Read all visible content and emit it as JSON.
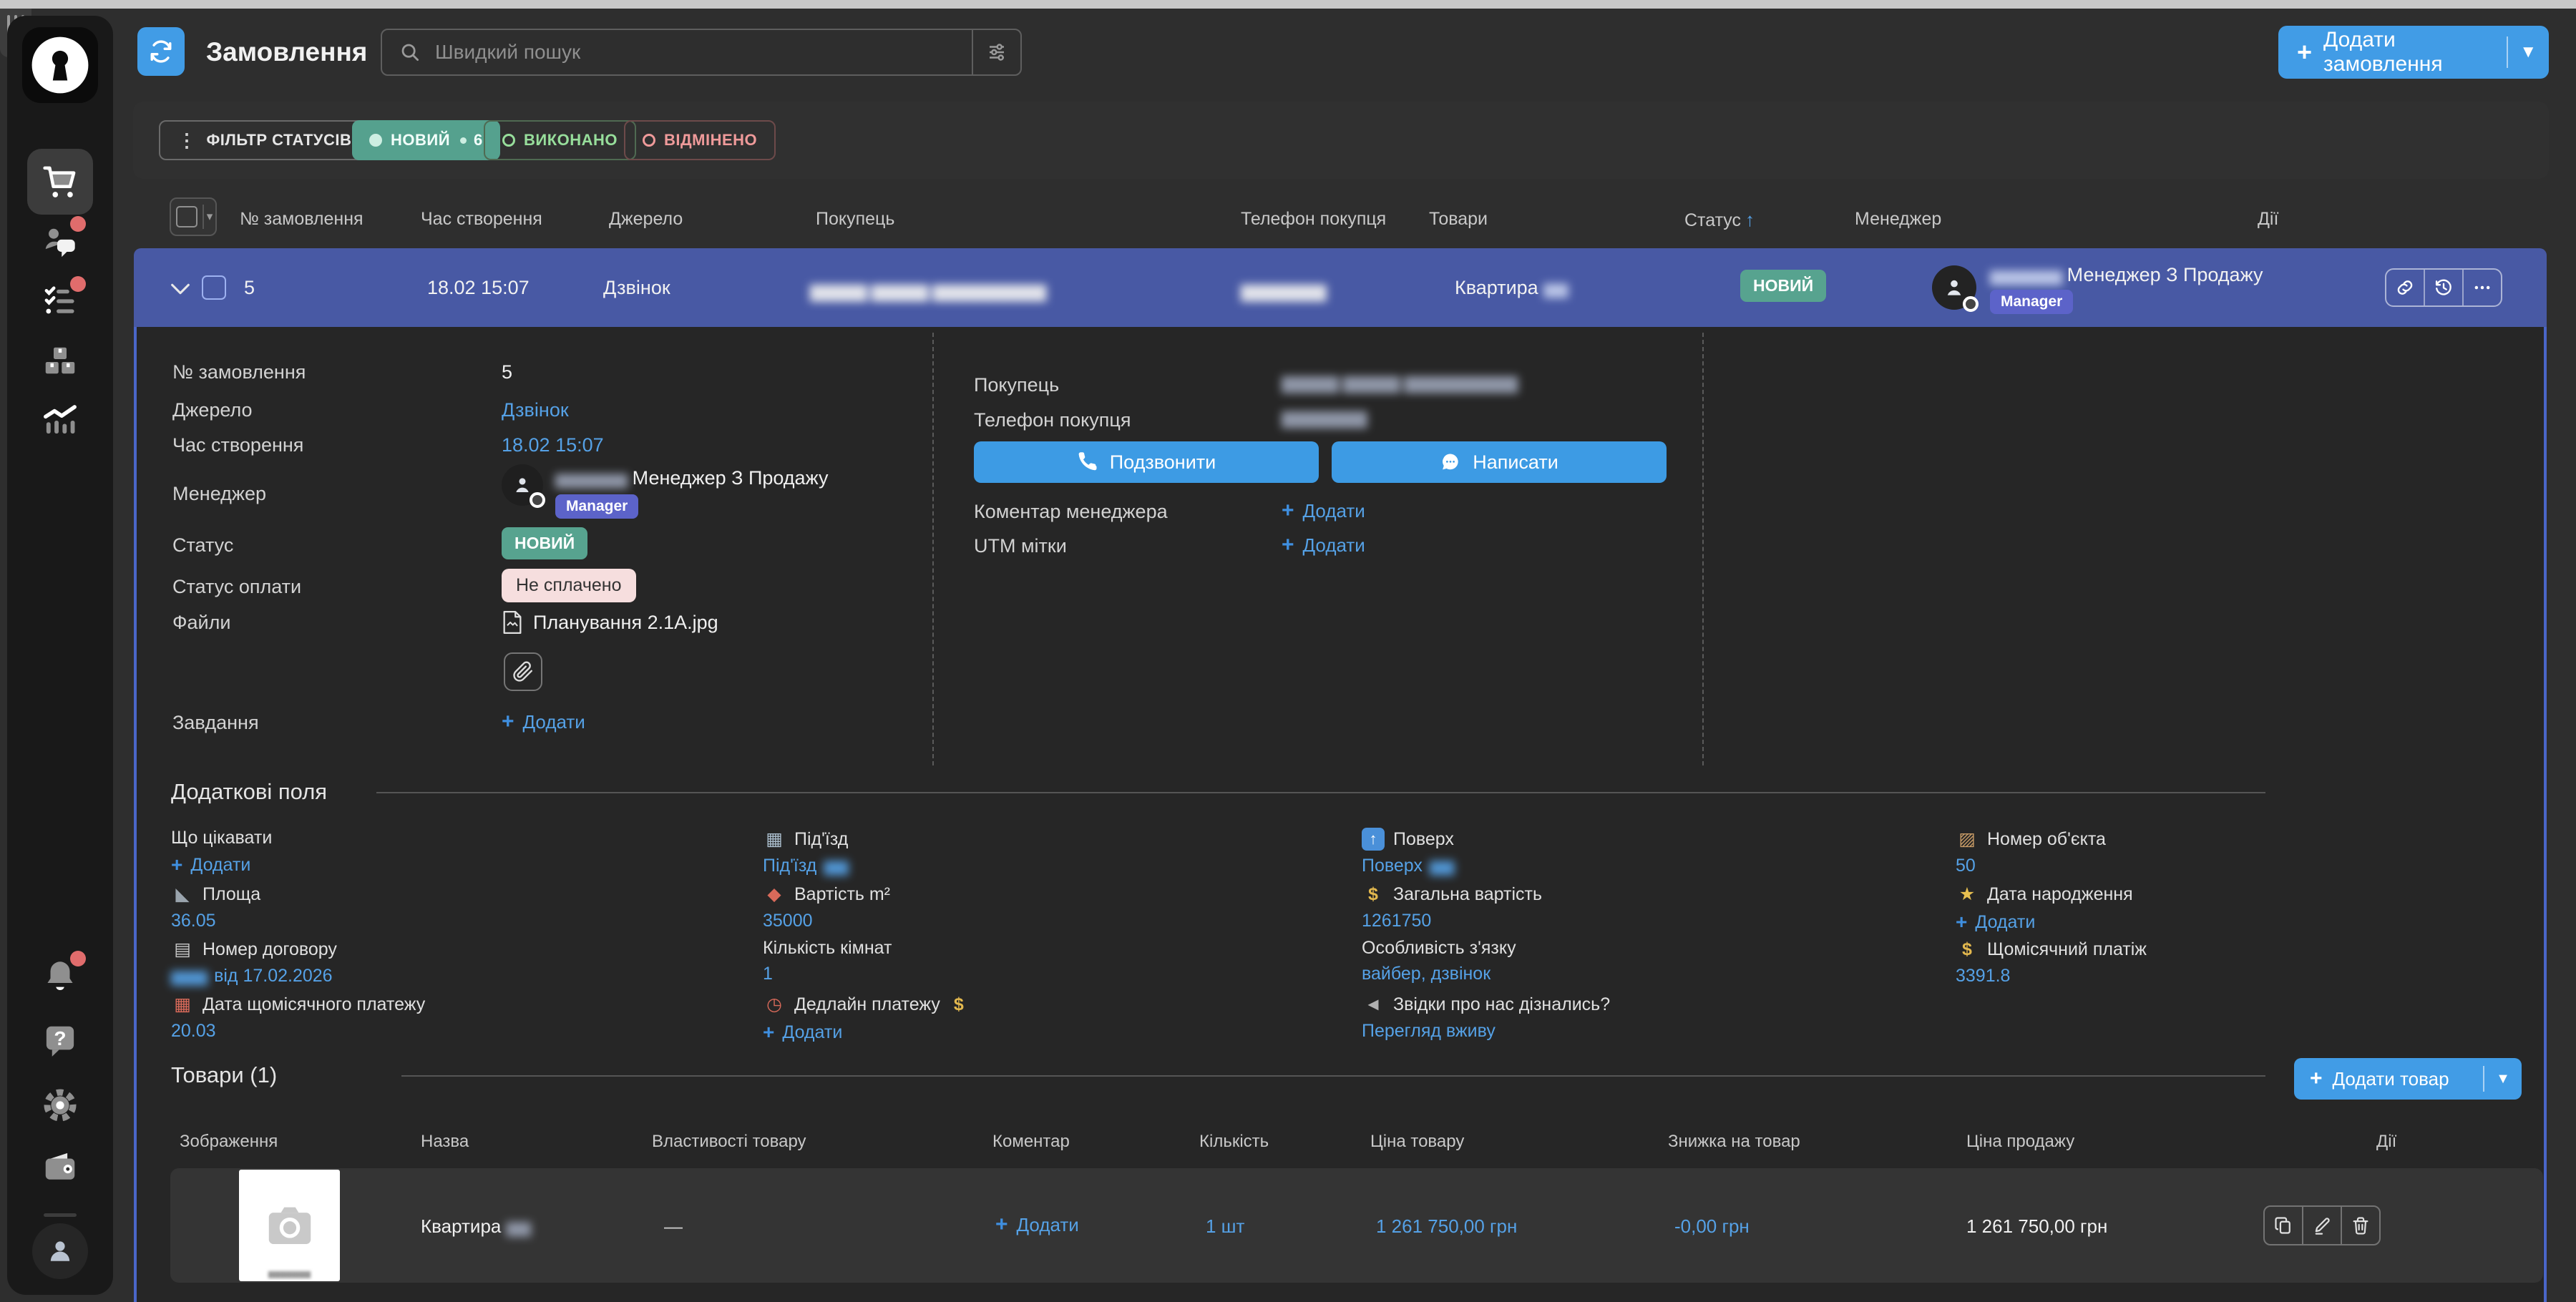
{
  "colors": {
    "accent_blue": "#419ce6",
    "link_blue": "#55a1e6",
    "row_blue": "#4859a4",
    "status_teal": "#57a38f",
    "manager_purple": "#5c63c9",
    "unpaid_pink": "#f6dede",
    "notif_red": "#e06c6c",
    "panel_bg": "#262626",
    "page_bg": "#2e2e2e"
  },
  "icons": {
    "plus": "+",
    "caret_down": "▾",
    "sort_up": "↑",
    "dots_vertical": "⋮",
    "dash": "—",
    "building": "▦",
    "floor": "↑",
    "box": "▨",
    "triangle": "◣",
    "diamond": "◆",
    "money": "$",
    "party": "★",
    "clipboard": "▤",
    "calendar": "▦",
    "alarm": "◷",
    "megaphone": "◄"
  },
  "topbar": {
    "title": "Замовлення",
    "search_placeholder": "Швидкий пошук",
    "add_order": "Додати замовлення"
  },
  "filter_bar": {
    "filter_label": "ФІЛЬТР СТАТУСІВ",
    "statuses": [
      {
        "label": "НОВИЙ",
        "count": "6",
        "state": "active"
      },
      {
        "label": "ВИКОНАНО",
        "state": "inactive"
      },
      {
        "label": "ВІДМІНЕНО",
        "state": "inactive"
      }
    ]
  },
  "orders_table": {
    "headers": [
      "№ замовлення",
      "Час створення",
      "Джерело",
      "Покупець",
      "Телефон покупця",
      "Товари",
      "Статус",
      "Менеджер",
      "Дії"
    ],
    "sorted_by": "Статус",
    "row": {
      "number": "5",
      "created": "18.02 15:07",
      "source": "Дзвінок",
      "buyer_masked": "▆▆▆▆ ▆▆▆▆ ▆▆▆▆▆▆▆▆",
      "phone_masked": "▆▆▆▆▆▆",
      "product": "Квартира",
      "product_masked": "▆▆",
      "status": "НОВИЙ",
      "manager_first_masked": "▆▆▆▆▆▆",
      "manager_name": "Менеджер З Продажу",
      "manager_badge": "Manager"
    }
  },
  "details": {
    "add_label": "Додати",
    "left": {
      "order_number_label": "№ замовлення",
      "order_number": "5",
      "source_label": "Джерело",
      "source": "Дзвінок",
      "created_label": "Час створення",
      "created": "18.02 15:07",
      "manager_label": "Менеджер",
      "manager_first_masked": "▆▆▆▆▆▆",
      "manager_name": "Менеджер З Продажу",
      "manager_badge": "Manager",
      "status_label": "Статус",
      "status": "НОВИЙ",
      "payment_status_label": "Статус оплати",
      "payment_status": "Не сплачено",
      "files_label": "Файли",
      "file_name": "Планування 2.1A.jpg",
      "tasks_label": "Завдання"
    },
    "right": {
      "buyer_label": "Покупець",
      "buyer_masked": "▆▆▆▆ ▆▆▆▆ ▆▆▆▆▆▆▆▆",
      "phone_label": "Телефон покупця",
      "phone_masked": "▆▆▆▆▆▆",
      "call_button": "Подзвонити",
      "write_button": "Написати",
      "comment_label": "Коментар менеджера",
      "utm_label": "UTM мітки"
    }
  },
  "additional_fields": {
    "title": "Додаткові поля",
    "fields": [
      {
        "label": "Що цікавати",
        "type": "add"
      },
      {
        "label": "Під'їзд",
        "icon": "building",
        "value": "Під'їзд",
        "masked": "▆▆",
        "masked_pos": "after"
      },
      {
        "label": "Поверх",
        "icon": "floor",
        "value": "Поверх",
        "masked": "▆▆",
        "masked_pos": "after"
      },
      {
        "label": "Номер об'єкта",
        "icon": "box",
        "value": "50"
      },
      {
        "label": "Площа",
        "icon": "triangle",
        "value": "36.05"
      },
      {
        "label": "Вартість m²",
        "icon": "diamond",
        "value": "35000"
      },
      {
        "label": "Загальна вартість",
        "icon": "money",
        "value": "1261750"
      },
      {
        "label": "Дата народження",
        "icon": "party",
        "type": "add"
      },
      {
        "label": "Номер договору",
        "icon": "clipboard",
        "value": "від 17.02.2026",
        "masked": "▆▆▆",
        "masked_pos": "before"
      },
      {
        "label": "Кількість кімнат",
        "value": "1"
      },
      {
        "label": "Особливість з'язку",
        "value": "вайбер, дзвінок"
      },
      {
        "label": "Щомісячний платіж",
        "icon": "money",
        "value": "3391.8"
      },
      {
        "label": "Дата щомісячного платежу",
        "icon": "calendar",
        "value": "20.03"
      },
      {
        "label": "Дедлайн платежу",
        "icon": "alarm",
        "icon_suffix": "money",
        "type": "add"
      },
      {
        "label": "Звідки про нас дізнались?",
        "icon": "megaphone",
        "value": "Перегляд вживу"
      }
    ]
  },
  "products": {
    "title": "Товари (1)",
    "add_button": "Додати товар",
    "headers": [
      "Зображення",
      "Назва",
      "Властивості товару",
      "Коментар",
      "Кількість",
      "Ціна товару",
      "Знижка на товар",
      "Ціна продажу",
      "Дії"
    ],
    "row": {
      "name": "Квартира",
      "name_masked": "▆▆",
      "properties": "—",
      "quantity": "1 шт",
      "price": "1 261 750,00 грн",
      "discount": "-0,00 грн",
      "sale_price": "1 261 750,00 грн",
      "image_caption_masked": "▆▆▆▆▆▆▆"
    }
  }
}
